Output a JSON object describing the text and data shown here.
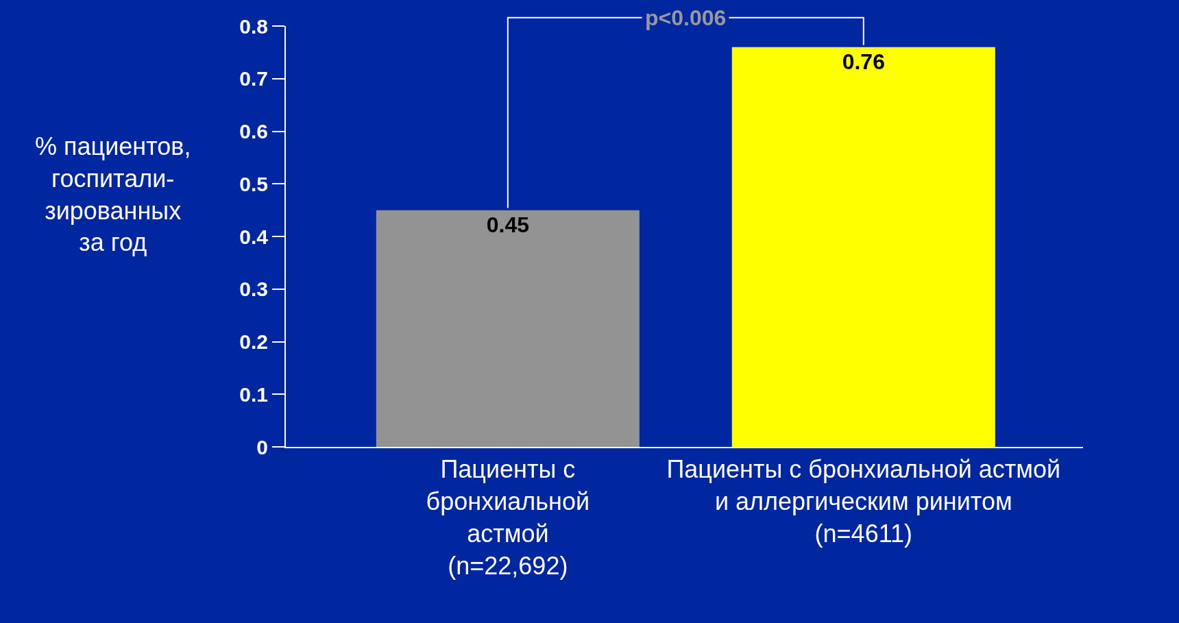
{
  "chart_data": {
    "type": "bar",
    "ylabel": "% пациентов,\nгоспитали-\nзированных\nза год",
    "categories": [
      "Пациенты с\nбронхиальной\nастмой\n(n=22,692)",
      "Пациенты с бронхиальной астмой\nи аллергическим ринитом\n(n=4611)"
    ],
    "values": [
      0.45,
      0.76
    ],
    "colors": [
      "#939393",
      "#ffff00"
    ],
    "data_labels": true,
    "ylim": [
      0,
      0.8
    ],
    "yticks": [
      0,
      0.1,
      0.2,
      0.3,
      0.4,
      0.5,
      0.6,
      0.7,
      0.8
    ],
    "grid": false,
    "annotations": [
      "p<0.006"
    ]
  }
}
